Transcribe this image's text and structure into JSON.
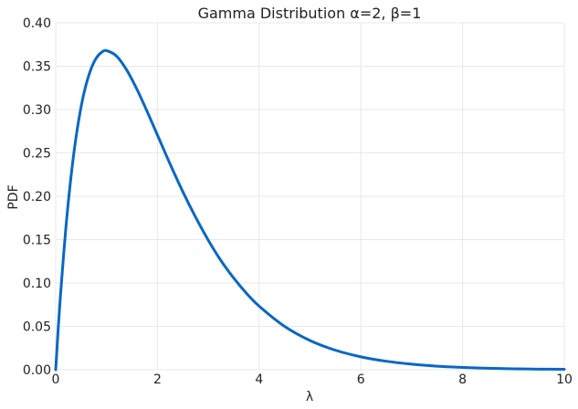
{
  "chart_data": {
    "type": "line",
    "title": "Gamma Distribution α=2, β=1",
    "xlabel": "λ",
    "ylabel": "PDF",
    "xlim": [
      0,
      10
    ],
    "ylim": [
      0,
      0.4
    ],
    "xticks": [
      0,
      2,
      4,
      6,
      8,
      10
    ],
    "xtick_labels": [
      "0",
      "2",
      "4",
      "6",
      "8",
      "10"
    ],
    "yticks": [
      0,
      0.05,
      0.1,
      0.15,
      0.2,
      0.25,
      0.3,
      0.35,
      0.4
    ],
    "ytick_labels": [
      "0.00",
      "0.05",
      "0.10",
      "0.15",
      "0.20",
      "0.25",
      "0.30",
      "0.35",
      "0.40"
    ],
    "grid": true,
    "legend": "none",
    "series": [
      {
        "color": "#0868c4",
        "x": [
          0,
          0.05,
          0.1,
          0.2,
          0.3,
          0.4,
          0.5,
          0.6,
          0.7,
          0.8,
          0.9,
          1.0,
          1.2,
          1.4,
          1.6,
          1.8,
          2.0,
          2.25,
          2.5,
          2.75,
          3.0,
          3.25,
          3.5,
          3.75,
          4.0,
          4.5,
          5.0,
          5.5,
          6.0,
          6.5,
          7.0,
          7.5,
          8.0,
          8.5,
          9.0,
          9.5,
          10.0
        ],
        "y": [
          0,
          0.0476,
          0.0905,
          0.1637,
          0.2222,
          0.2681,
          0.3033,
          0.3293,
          0.3476,
          0.3595,
          0.3659,
          0.3679,
          0.3614,
          0.3452,
          0.323,
          0.2975,
          0.2707,
          0.2371,
          0.2052,
          0.176,
          0.1494,
          0.1258,
          0.1057,
          0.0882,
          0.0733,
          0.05,
          0.0337,
          0.0225,
          0.0149,
          0.0098,
          0.0064,
          0.0041,
          0.0027,
          0.0017,
          0.0011,
          0.0007,
          0.0005
        ]
      }
    ]
  }
}
